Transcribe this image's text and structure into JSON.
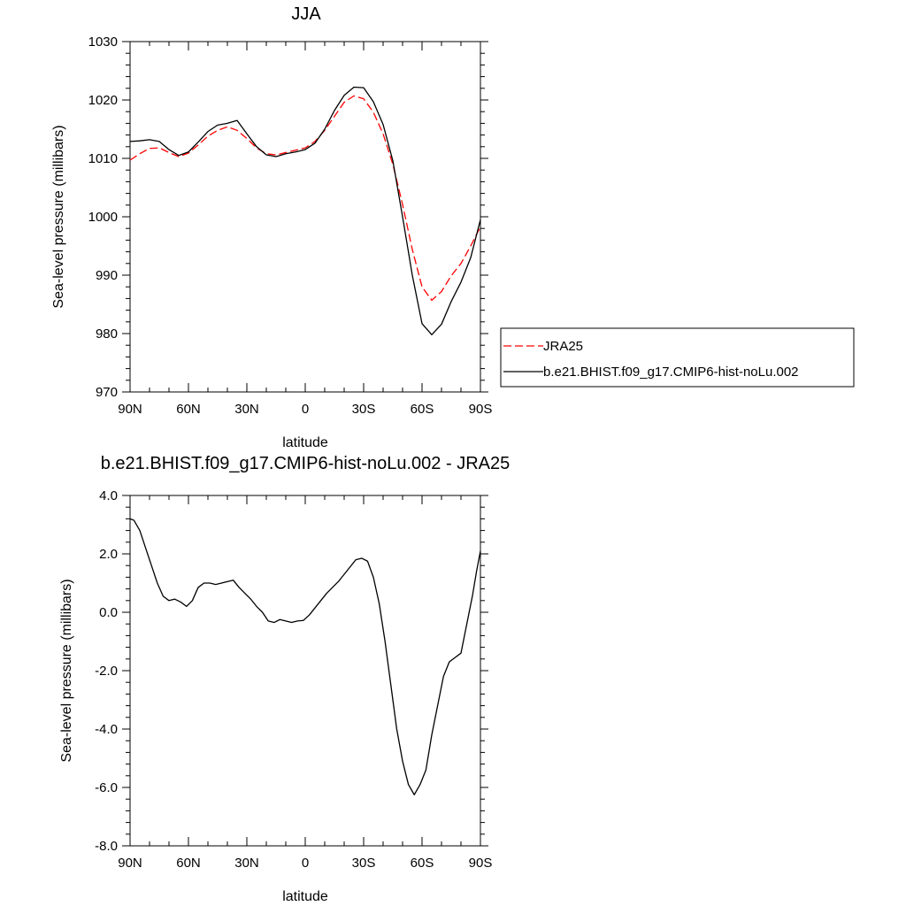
{
  "chart_data": [
    {
      "type": "line",
      "title": "JJA",
      "xlabel": "latitude",
      "ylabel": "Sea-level pressure (millibars)",
      "xlim": [
        90,
        -90
      ],
      "ylim": [
        970,
        1030
      ],
      "xticks": [
        90,
        60,
        30,
        0,
        -30,
        -60,
        -90
      ],
      "xtick_labels": [
        "90N",
        "60N",
        "30N",
        "0",
        "30S",
        "60S",
        "90S"
      ],
      "yticks": [
        970,
        980,
        990,
        1000,
        1010,
        1020,
        1030
      ],
      "ytick_labels": [
        "970",
        "980",
        "990",
        "1000",
        "1010",
        "1020",
        "1030"
      ],
      "grid": false,
      "legend_position": "right",
      "series": [
        {
          "name": "JRA25",
          "style": "dashed",
          "color": "#ff0000",
          "x": [
            90,
            85,
            80,
            75,
            70,
            65,
            60,
            55,
            50,
            45,
            40,
            35,
            30,
            25,
            20,
            15,
            10,
            5,
            0,
            -5,
            -10,
            -15,
            -20,
            -25,
            -30,
            -35,
            -40,
            -45,
            -50,
            -55,
            -60,
            -65,
            -70,
            -75,
            -80,
            -85,
            -90
          ],
          "y": [
            1009.7,
            1010.8,
            1011.7,
            1011.8,
            1011.0,
            1010.3,
            1010.9,
            1012.3,
            1013.8,
            1014.8,
            1015.4,
            1014.8,
            1013.4,
            1011.8,
            1010.8,
            1010.6,
            1011.0,
            1011.4,
            1011.8,
            1012.9,
            1014.8,
            1017.2,
            1019.6,
            1020.7,
            1020.2,
            1017.9,
            1014.2,
            1009.0,
            1002.1,
            994.4,
            988.0,
            985.7,
            987.2,
            989.9,
            992.0,
            995.0,
            998.3
          ]
        },
        {
          "name": "b.e21.BHIST.f09_g17.CMIP6-hist-noLu.002",
          "style": "solid",
          "color": "#000000",
          "x": [
            90,
            85,
            80,
            75,
            70,
            65,
            60,
            55,
            50,
            45,
            40,
            35,
            30,
            25,
            20,
            15,
            10,
            5,
            0,
            -5,
            -10,
            -15,
            -20,
            -25,
            -30,
            -35,
            -40,
            -45,
            -50,
            -55,
            -60,
            -65,
            -70,
            -75,
            -80,
            -85,
            -90
          ],
          "y": [
            1012.9,
            1013.0,
            1013.2,
            1012.9,
            1011.5,
            1010.5,
            1011.1,
            1012.8,
            1014.6,
            1015.7,
            1016.0,
            1016.5,
            1014.2,
            1012.0,
            1010.6,
            1010.3,
            1010.8,
            1011.1,
            1011.5,
            1012.6,
            1015.0,
            1018.2,
            1020.8,
            1022.2,
            1022.1,
            1019.7,
            1015.8,
            1009.6,
            1000.0,
            990.0,
            981.7,
            979.8,
            981.6,
            985.5,
            988.8,
            993.0,
            999.5
          ]
        }
      ]
    },
    {
      "type": "line",
      "title": "b.e21.BHIST.f09_g17.CMIP6-hist-noLu.002 - JRA25",
      "xlabel": "latitude",
      "ylabel": "Sea-level pressure (millibars)",
      "xlim": [
        90,
        -90
      ],
      "ylim": [
        -8.0,
        4.0
      ],
      "xticks": [
        90,
        60,
        30,
        0,
        -30,
        -60,
        -90
      ],
      "xtick_labels": [
        "90N",
        "60N",
        "30N",
        "0",
        "30S",
        "60S",
        "90S"
      ],
      "yticks": [
        -8.0,
        -6.0,
        -4.0,
        -2.0,
        0.0,
        2.0,
        4.0
      ],
      "ytick_labels": [
        "-8.0",
        "-6.0",
        "-4.0",
        "-2.0",
        "0.0",
        "2.0",
        "4.0"
      ],
      "grid": false,
      "series": [
        {
          "style": "solid",
          "color": "#000000",
          "x": [
            90,
            88,
            85,
            82,
            79,
            76,
            73,
            70,
            67,
            64,
            61,
            58,
            55,
            52,
            49,
            46,
            43,
            40,
            37,
            34,
            31,
            28,
            25,
            22,
            19,
            16,
            13,
            10,
            7,
            4,
            1,
            -2,
            -5,
            -8,
            -11,
            -14,
            -17,
            -20,
            -23,
            -26,
            -29,
            -32,
            -35,
            -38,
            -41,
            -44,
            -47,
            -50,
            -53,
            -56,
            -59,
            -62,
            -65,
            -68,
            -71,
            -74,
            -77,
            -80,
            -83,
            -86,
            -88,
            -90
          ],
          "y": [
            3.2,
            3.15,
            2.8,
            2.2,
            1.6,
            1.0,
            0.55,
            0.4,
            0.45,
            0.35,
            0.2,
            0.4,
            0.85,
            1.0,
            1.0,
            0.95,
            1.0,
            1.05,
            1.1,
            0.85,
            0.65,
            0.45,
            0.2,
            0.0,
            -0.3,
            -0.35,
            -0.25,
            -0.3,
            -0.35,
            -0.3,
            -0.28,
            -0.1,
            0.15,
            0.4,
            0.65,
            0.85,
            1.05,
            1.3,
            1.55,
            1.8,
            1.85,
            1.75,
            1.2,
            0.3,
            -1.0,
            -2.5,
            -4.0,
            -5.1,
            -5.9,
            -6.25,
            -5.9,
            -5.4,
            -4.2,
            -3.2,
            -2.2,
            -1.7,
            -1.55,
            -1.4,
            -0.4,
            0.6,
            1.4,
            2.1
          ]
        }
      ]
    }
  ]
}
